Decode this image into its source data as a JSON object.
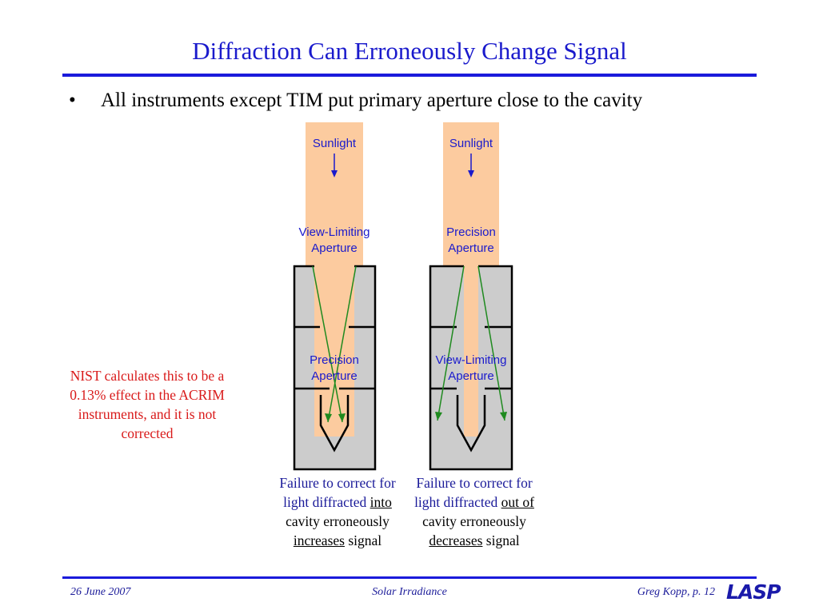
{
  "title": "Diffraction Can Erroneously Change Signal",
  "bullet": {
    "symbol": "•",
    "text": "All instruments except TIM put primary aperture close to the cavity"
  },
  "diagram": {
    "left": {
      "sunlight": "Sunlight",
      "top_aperture": [
        "View-Limiting",
        "Aperture"
      ],
      "inner_aperture": [
        "Precision",
        "Aperture"
      ]
    },
    "right": {
      "sunlight": "Sunlight",
      "top_aperture": [
        "Precision",
        "Aperture"
      ],
      "inner_aperture": [
        "View-Limiting",
        "Aperture"
      ]
    },
    "colors": {
      "beam": "#fccb9f",
      "housing": "#cccccc",
      "ray": "#1f8a1f",
      "label": "#1a1acc"
    }
  },
  "note": "NIST calculates this to be a 0.13% effect in the ACRIM instruments, and it is not corrected",
  "captions": {
    "left": {
      "pre": "Failure to correct for light diffracted",
      "emph": "into",
      "mid": "cavity erroneously",
      "emph2": "increases",
      "post": "signal"
    },
    "right": {
      "pre": "Failure to correct for light diffracted",
      "emph": "out of",
      "mid": "cavity erroneously",
      "emph2": "decreases",
      "post": "signal"
    }
  },
  "footer": {
    "date": "26 June 2007",
    "center": "Solar Irradiance",
    "right": "Greg Kopp, p. 12",
    "logo": "LASP"
  }
}
